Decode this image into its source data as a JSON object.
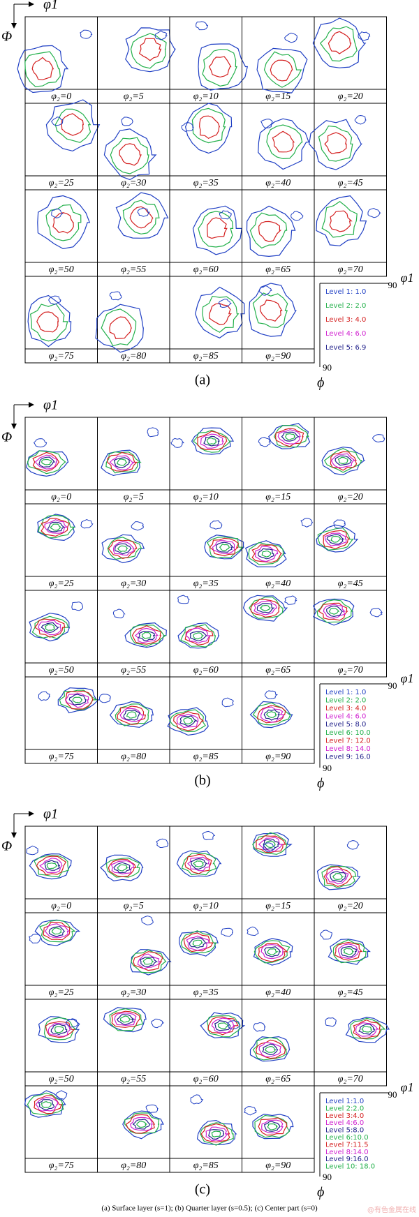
{
  "panels": [
    {
      "label": "(a)",
      "axis_x": "φ1",
      "axis_y": "Φ",
      "sections": [
        "φ₂=0",
        "φ₂=5",
        "φ₂=10",
        "φ₂=15",
        "φ₂=20",
        "φ₂=25",
        "φ₂=30",
        "φ₂=35",
        "φ₂=40",
        "φ₂=45",
        "φ₂=50",
        "φ₂=55",
        "φ₂=60",
        "φ₂=65",
        "φ₂=70",
        "φ₂=75",
        "φ₂=80",
        "φ₂=85",
        "φ₂=90"
      ],
      "legend": [
        {
          "label": "Level 1: 1.0",
          "color": "#1f3fc4"
        },
        {
          "label": "Level 2: 2.0",
          "color": "#22b04a"
        },
        {
          "label": "Level 3: 4.0",
          "color": "#d42020"
        },
        {
          "label": "Level 4: 6.0",
          "color": "#d020d0"
        },
        {
          "label": "Level 5: 6.9",
          "color": "#20208a"
        }
      ],
      "corner_x": "90",
      "corner_x_label": "φ1",
      "corner_y": "90",
      "corner_y_label": "ϕ"
    },
    {
      "label": "(b)",
      "axis_x": "φ1",
      "axis_y": "Φ",
      "sections": [
        "φ₂=0",
        "φ₂=5",
        "φ₂=10",
        "φ₂=15",
        "φ₂=20",
        "φ₂=25",
        "φ₂=30",
        "φ₂=35",
        "φ₂=40",
        "φ₂=45",
        "φ₂=50",
        "φ₂=55",
        "φ₂=60",
        "φ₂=65",
        "φ₂=70",
        "φ₂=75",
        "φ₂=80",
        "φ₂=85",
        "φ₂=90"
      ],
      "legend": [
        {
          "label": "Level 1: 1.0",
          "color": "#1f3fc4"
        },
        {
          "label": "Level 2: 2.0",
          "color": "#22b04a"
        },
        {
          "label": "Level 3: 4.0",
          "color": "#d42020"
        },
        {
          "label": "Level 4: 6.0",
          "color": "#d020d0"
        },
        {
          "label": "Level 5: 8.0",
          "color": "#20208a"
        },
        {
          "label": "Level 6: 10.0",
          "color": "#22b04a"
        },
        {
          "label": "Level 7: 12.0",
          "color": "#d42020"
        },
        {
          "label": "Level 8: 14.0",
          "color": "#d020d0"
        },
        {
          "label": "Level 9: 16.0",
          "color": "#20208a"
        }
      ],
      "corner_x": "90",
      "corner_x_label": "φ1",
      "corner_y": "90",
      "corner_y_label": "ϕ"
    },
    {
      "label": "(c)",
      "axis_x": "φ1",
      "axis_y": "Φ",
      "sections": [
        "φ₂=0",
        "φ₂=5",
        "φ₂=10",
        "φ₂=15",
        "φ₂=20",
        "φ₂=25",
        "φ₂=30",
        "φ₂=35",
        "φ₂=40",
        "φ₂=45",
        "φ₂=50",
        "φ₂=55",
        "φ₂=60",
        "φ₂=65",
        "φ₂=70",
        "φ₂=75",
        "φ₂=80",
        "φ₂=85",
        "φ₂=90"
      ],
      "legend": [
        {
          "label": "Level 1:1.0",
          "color": "#1f3fc4"
        },
        {
          "label": "Level 2:2.0",
          "color": "#22b04a"
        },
        {
          "label": "Level 3:4.0",
          "color": "#d42020"
        },
        {
          "label": "Level 4:6.0",
          "color": "#d020d0"
        },
        {
          "label": "Level 5:8.0",
          "color": "#20208a"
        },
        {
          "label": "Level 6:10.0",
          "color": "#22b04a"
        },
        {
          "label": "Level 7:11.5",
          "color": "#d42020"
        },
        {
          "label": "Level 8:14.0",
          "color": "#d020d0"
        },
        {
          "label": "Level 9:16.0",
          "color": "#20208a"
        },
        {
          "label": "Level 10: 18.0",
          "color": "#22b04a"
        }
      ],
      "corner_x": "90",
      "corner_x_label": "φ1",
      "corner_y": "90",
      "corner_y_label": "ϕ"
    }
  ],
  "caption": "(a)  Surface  layer  (s=1); (b) Quarter layer (s=0.5); (c) Center part (s=0)",
  "watermark": "@有色金属在线"
}
